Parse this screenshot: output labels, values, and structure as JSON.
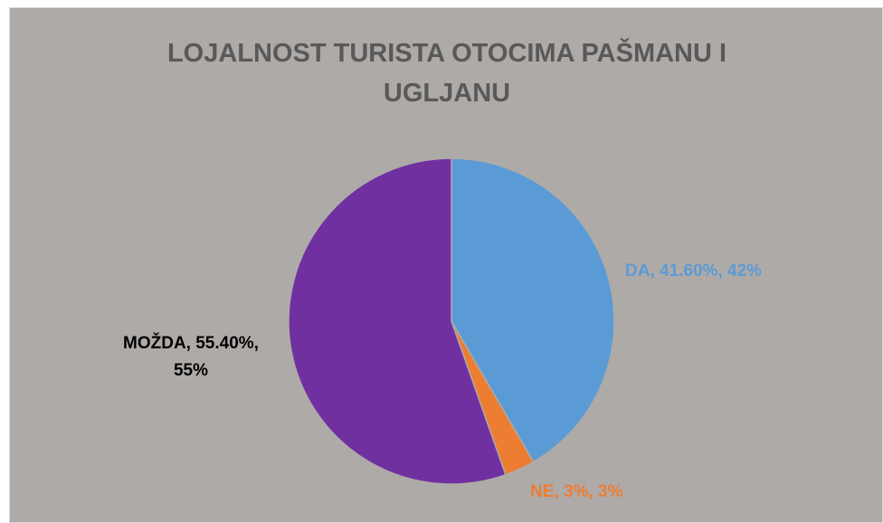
{
  "chart_data": {
    "type": "pie",
    "title": "LOJALNOST TURISTA OTOCIMA PAŠMANU I UGLJANU",
    "categories": [
      "DA",
      "NE",
      "MOŽDA"
    ],
    "values": [
      41.6,
      3,
      55.4
    ],
    "value_labels": [
      "DA, 41.60%, 42%",
      "NE, 3%, 3%",
      "MOŽDA, 55.40%, 55%"
    ],
    "colors": [
      "#5b9bd5",
      "#ed7d31",
      "#7030a0"
    ]
  }
}
